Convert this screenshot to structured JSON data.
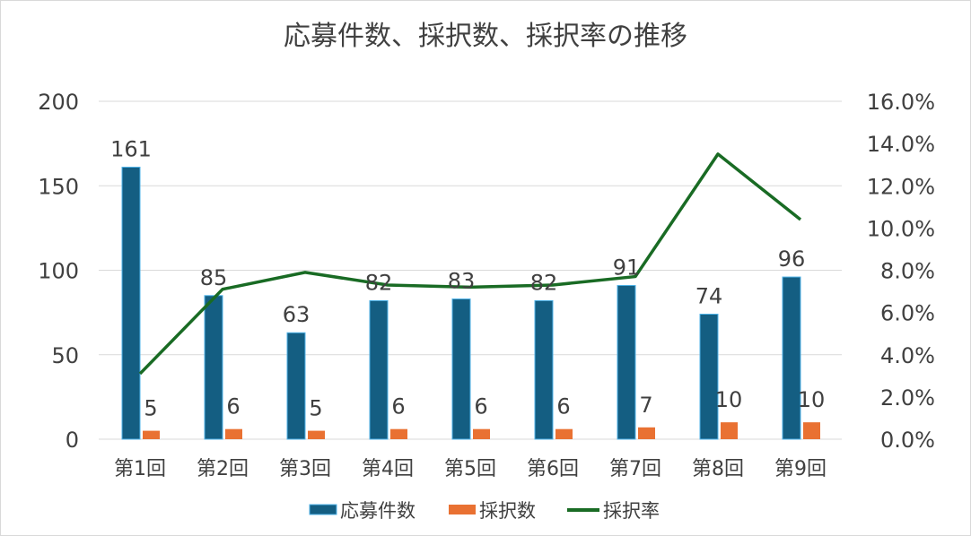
{
  "chart_data": {
    "type": "bar+line",
    "title": "応募件数、採択数、採択率の推移",
    "categories": [
      "第1回",
      "第2回",
      "第3回",
      "第4回",
      "第5回",
      "第6回",
      "第7回",
      "第8回",
      "第9回"
    ],
    "series": [
      {
        "name": "応募件数",
        "type": "bar",
        "axis": "left",
        "color": "#145e82",
        "values": [
          161,
          85,
          63,
          82,
          83,
          82,
          91,
          74,
          96
        ]
      },
      {
        "name": "採択数",
        "type": "bar",
        "axis": "left",
        "color": "#e97132",
        "values": [
          5,
          6,
          5,
          6,
          6,
          6,
          7,
          10,
          10
        ]
      },
      {
        "name": "採択率",
        "type": "line",
        "axis": "right",
        "color": "#196b24",
        "values": [
          3.1,
          7.1,
          7.9,
          7.3,
          7.2,
          7.3,
          7.7,
          13.5,
          10.4
        ]
      }
    ],
    "y_left": {
      "min": 0,
      "max": 200,
      "ticks": [
        "0",
        "50",
        "100",
        "150",
        "200"
      ]
    },
    "y_right": {
      "min": 0,
      "max": 16,
      "ticks": [
        "0.0%",
        "2.0%",
        "4.0%",
        "6.0%",
        "8.0%",
        "10.0%",
        "12.0%",
        "14.0%",
        "16.0%"
      ]
    },
    "grid": true,
    "legend": "bottom"
  }
}
